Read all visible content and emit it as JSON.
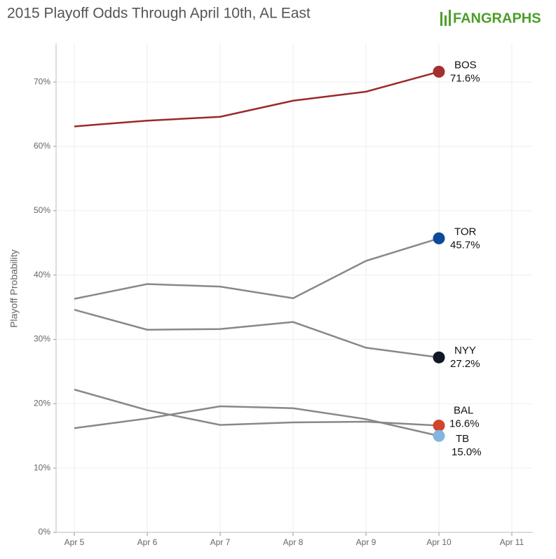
{
  "chart_data": {
    "type": "line",
    "title": "2015 Playoff Odds Through April 10th, AL East",
    "logo": "FANGRAPHS",
    "y_label": "Playoff Probability",
    "categories": [
      "Apr 5",
      "Apr 6",
      "Apr 7",
      "Apr 8",
      "Apr 9",
      "Apr 10",
      "Apr 11"
    ],
    "ylim": [
      0,
      76
    ],
    "yticks": [
      {
        "value": 0,
        "label": "0%"
      },
      {
        "value": 10,
        "label": "10%"
      },
      {
        "value": 20,
        "label": "20%"
      },
      {
        "value": 30,
        "label": "30%"
      },
      {
        "value": 40,
        "label": "40%"
      },
      {
        "value": 50,
        "label": "50%"
      },
      {
        "value": 60,
        "label": "60%"
      },
      {
        "value": 70,
        "label": "70%"
      }
    ],
    "grid": true,
    "series": [
      {
        "name": "BOS",
        "color": "#9a2a2a",
        "marker_color": "#a33030",
        "values": [
          63.1,
          64.0,
          64.6,
          67.1,
          68.5,
          71.6,
          null
        ],
        "value_labels": [
          null,
          null,
          null,
          null,
          null,
          "71.6%",
          null
        ]
      },
      {
        "name": "TOR",
        "color": "#888888",
        "marker_color": "#0d4a99",
        "values": [
          36.3,
          38.6,
          38.2,
          36.4,
          42.2,
          45.7,
          null
        ],
        "value_labels": [
          null,
          null,
          null,
          null,
          null,
          "45.7%",
          null
        ]
      },
      {
        "name": "NYY",
        "color": "#888888",
        "marker_color": "#121826",
        "values": [
          34.6,
          31.5,
          31.6,
          32.7,
          28.7,
          27.2,
          null
        ],
        "value_labels": [
          null,
          null,
          null,
          null,
          null,
          "27.2%",
          null
        ]
      },
      {
        "name": "BAL",
        "color": "#888888",
        "marker_color": "#d0452b",
        "values": [
          22.2,
          19.0,
          16.7,
          17.1,
          17.2,
          16.6,
          null
        ],
        "value_labels": [
          null,
          null,
          null,
          null,
          null,
          "16.6%",
          null
        ]
      },
      {
        "name": "TB",
        "color": "#888888",
        "marker_color": "#84b5e0",
        "values": [
          16.2,
          17.7,
          19.6,
          19.3,
          17.6,
          15.0,
          null
        ],
        "value_labels": [
          null,
          null,
          null,
          null,
          null,
          "15.0%",
          null
        ]
      }
    ]
  }
}
